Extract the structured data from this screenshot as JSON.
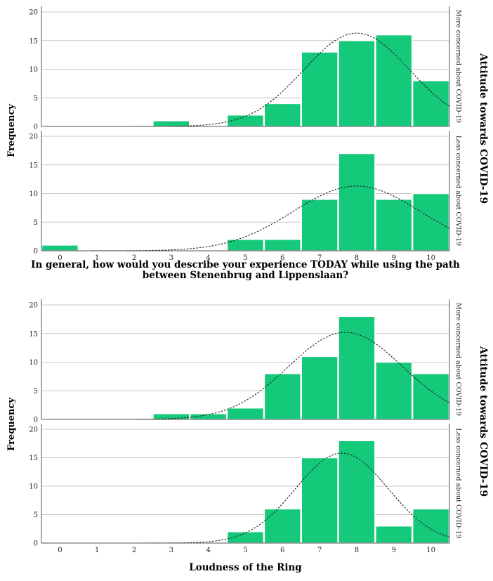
{
  "chart_data": [
    {
      "type": "bar",
      "xlabel": "In general, how would you describe your experience TODAY while using the path between Stenenbrug and Lippenslaan?",
      "ylabel": "Frequency",
      "group_title": "Attitude towards COVID-19",
      "categories": [
        "0",
        "1",
        "2",
        "3",
        "4",
        "5",
        "6",
        "7",
        "8",
        "9",
        "10"
      ],
      "ylim": [
        0,
        20
      ],
      "yticks": [
        0,
        5,
        10,
        15,
        20
      ],
      "grid": true,
      "panels": [
        {
          "name": "More concerned about COVID-19",
          "values": [
            0,
            0,
            0,
            1,
            0,
            2,
            4,
            13,
            15,
            16,
            8
          ],
          "normal_curve": {
            "mean": 8.0,
            "peak": 16.3
          }
        },
        {
          "name": "Less concerned about COVID-19",
          "values": [
            1,
            0,
            0,
            0,
            0,
            2,
            2,
            9,
            17,
            9,
            10
          ],
          "normal_curve": {
            "mean": 8.0,
            "peak": 11.3
          }
        }
      ]
    },
    {
      "type": "bar",
      "xlabel": "Loudness of the Ring",
      "ylabel": "Frequency",
      "group_title": "Attitude towards COVID-19",
      "categories": [
        "0",
        "1",
        "2",
        "3",
        "4",
        "5",
        "6",
        "7",
        "8",
        "9",
        "10"
      ],
      "ylim": [
        0,
        20
      ],
      "yticks": [
        0,
        5,
        10,
        15,
        20
      ],
      "grid": true,
      "panels": [
        {
          "name": "More concerned about COVID-19",
          "values": [
            0,
            0,
            0,
            1,
            1,
            2,
            8,
            11,
            18,
            10,
            8
          ],
          "normal_curve": {
            "mean": 7.7,
            "peak": 15.2
          }
        },
        {
          "name": "Less concerned about COVID-19",
          "values": [
            0,
            0,
            0,
            0,
            0,
            2,
            6,
            15,
            18,
            3,
            6
          ],
          "normal_curve": {
            "mean": 7.6,
            "peak": 15.8
          }
        }
      ]
    }
  ]
}
